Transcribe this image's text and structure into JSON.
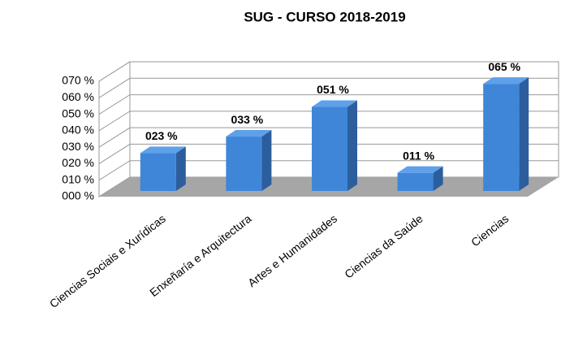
{
  "chart_data": {
    "type": "bar3d",
    "title": "SUG - CURSO 2018-2019",
    "categories": [
      "Ciencias Sociais e Xurídicas",
      "Enxeñaría e Arquitectura",
      "Artes e Humanidades",
      "Ciencias da Saúde",
      "Ciencias"
    ],
    "values": [
      23,
      33,
      51,
      11,
      65
    ],
    "value_labels": [
      "023 %",
      "033 %",
      "051 %",
      "011 %",
      "065 %"
    ],
    "color": "#3f86d9",
    "ylim": [
      0,
      70
    ],
    "yticks": [
      {
        "value": 0,
        "label": "000 %"
      },
      {
        "value": 10,
        "label": "010 %"
      },
      {
        "value": 20,
        "label": "020 %"
      },
      {
        "value": 30,
        "label": "030 %"
      },
      {
        "value": 40,
        "label": "040 %"
      },
      {
        "value": 50,
        "label": "050 %"
      },
      {
        "value": 60,
        "label": "060 %"
      },
      {
        "value": 70,
        "label": "070 %"
      }
    ],
    "grid": true
  }
}
